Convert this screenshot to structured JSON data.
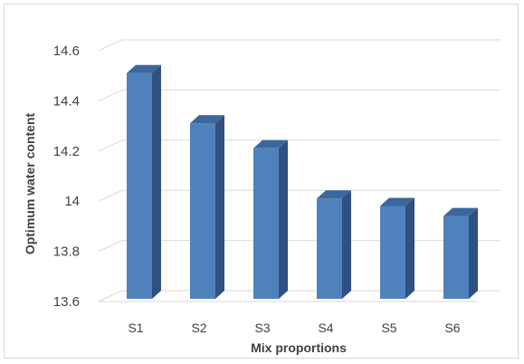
{
  "chart_data": {
    "type": "bar",
    "style": "3d-column",
    "categories": [
      "S1",
      "S2",
      "S3",
      "S4",
      "S5",
      "S6"
    ],
    "values": [
      14.5,
      14.3,
      14.2,
      14.0,
      13.97,
      13.93
    ],
    "xlabel": "Mix proportions",
    "ylabel": "Optimum water content",
    "ylim": [
      13.6,
      14.6
    ],
    "yticks": [
      "13.6",
      "13.8",
      "14",
      "14.2",
      "14.4",
      "14.6"
    ],
    "grid": true,
    "legend": "none",
    "colors": {
      "bar_front": "#4f81bd",
      "bar_side": "#2e5181",
      "bar_top": "#3b679d",
      "grid": "#d9d9d9"
    }
  }
}
